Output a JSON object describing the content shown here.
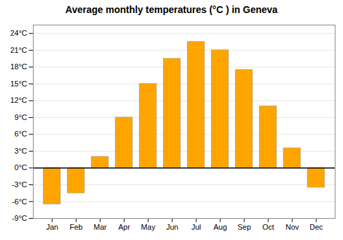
{
  "chart_data": {
    "type": "bar",
    "title": "Average monthly temperatures (°C ) in Geneva",
    "categories": [
      "Jan",
      "Feb",
      "Mar",
      "Apr",
      "May",
      "Jun",
      "Jul",
      "Aug",
      "Sep",
      "Oct",
      "Nov",
      "Dec"
    ],
    "values": [
      -6.5,
      -4.5,
      2.0,
      9.0,
      15.0,
      19.5,
      22.5,
      21.0,
      17.5,
      11.0,
      3.5,
      -3.5
    ],
    "color": "#FFA500",
    "ylim": [
      -9,
      25.5
    ],
    "yticks": [
      {
        "value": -9,
        "label": "-9°C"
      },
      {
        "value": -6,
        "label": "-6°C"
      },
      {
        "value": -3,
        "label": "-3°C"
      },
      {
        "value": 0,
        "label": "0°C"
      },
      {
        "value": 3,
        "label": "3°C"
      },
      {
        "value": 6,
        "label": "6°C"
      },
      {
        "value": 9,
        "label": "9°C"
      },
      {
        "value": 12,
        "label": "12°C"
      },
      {
        "value": 15,
        "label": "15°C"
      },
      {
        "value": 18,
        "label": "18°C"
      },
      {
        "value": 21,
        "label": "21°C"
      },
      {
        "value": 24,
        "label": "24°C"
      }
    ],
    "grid": true
  }
}
